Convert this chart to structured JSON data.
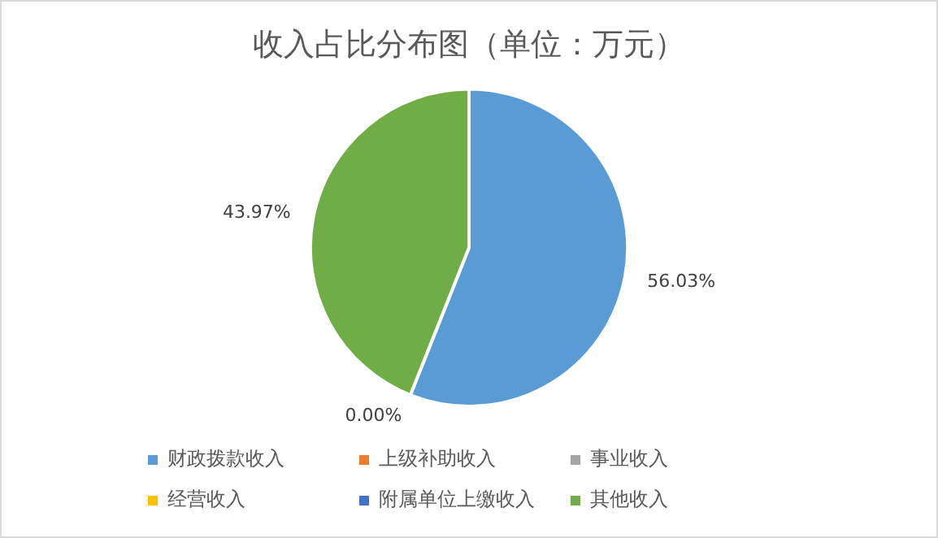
{
  "chart_data": {
    "type": "pie",
    "title": "收入占比分布图（单位：万元）",
    "categories": [
      "财政拨款收入",
      "上级补助收入",
      "事业收入",
      "经营收入",
      "附属单位上缴收入",
      "其他收入"
    ],
    "values": [
      56.03,
      0,
      0,
      0,
      0,
      43.97
    ],
    "colors": [
      "#5b9bd5",
      "#ed7d31",
      "#a5a5a5",
      "#ffc000",
      "#4472c4",
      "#70ad47"
    ],
    "value_labels": [
      "56.03%",
      "0.00%",
      null,
      null,
      null,
      "43.97%"
    ],
    "legend": "bottom"
  }
}
